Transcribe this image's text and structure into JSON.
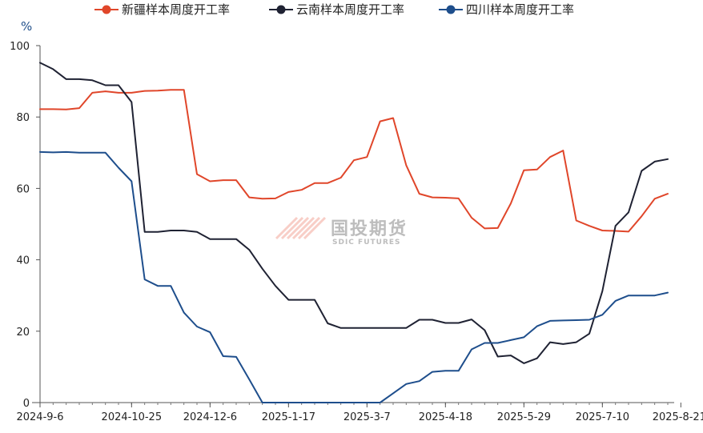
{
  "chart_data": {
    "type": "line",
    "unit": "%",
    "ylim": [
      0,
      100
    ],
    "yticks": [
      0,
      20,
      40,
      60,
      80,
      100
    ],
    "x_tick_labels": [
      "2024-9-6",
      "2024-10-25",
      "2024-12-6",
      "2025-1-17",
      "2025-3-7",
      "2025-4-18",
      "2025-5-29",
      "2025-7-10",
      "2025-8-21"
    ],
    "x_tick_index": [
      0,
      7,
      13,
      19,
      25,
      31,
      37,
      43,
      49
    ],
    "x_count": 49,
    "legend_position": "top",
    "grid": false,
    "series": [
      {
        "name": "新疆样本周度开工率",
        "color": "#e0462a",
        "values": [
          82.2,
          82.2,
          82.1,
          82.5,
          86.8,
          87.2,
          86.8,
          86.8,
          87.3,
          87.4,
          87.6,
          87.6,
          64.0,
          62.0,
          62.3,
          62.3,
          57.5,
          57.1,
          57.2,
          59.0,
          59.6,
          61.5,
          61.5,
          63.0,
          67.9,
          68.8,
          78.8,
          79.7,
          66.5,
          58.5,
          57.5,
          57.4,
          57.2,
          51.8,
          48.8,
          48.9,
          55.8,
          65.1,
          65.3,
          68.8,
          70.6,
          51.0,
          49.5,
          48.2,
          48.1,
          47.9,
          52.2,
          57.1,
          58.5
        ]
      },
      {
        "name": "云南样本周度开工率",
        "color": "#1f2233",
        "values": [
          95.2,
          93.4,
          90.6,
          90.6,
          90.3,
          88.9,
          88.9,
          84.2,
          47.8,
          47.8,
          48.2,
          48.2,
          47.8,
          45.8,
          45.8,
          45.8,
          42.8,
          37.5,
          32.7,
          28.8,
          28.8,
          28.8,
          22.2,
          20.9,
          20.9,
          20.9,
          20.9,
          20.9,
          20.9,
          23.2,
          23.2,
          22.3,
          22.3,
          23.3,
          20.3,
          12.9,
          13.2,
          11.0,
          12.4,
          16.9,
          16.4,
          16.9,
          19.3,
          31.2,
          49.5,
          53.3,
          64.9,
          67.5,
          68.2
        ]
      },
      {
        "name": "四川样本周度开工率",
        "color": "#1e4e8c",
        "values": [
          70.2,
          70.1,
          70.2,
          70.0,
          70.0,
          70.0,
          65.8,
          62.0,
          34.5,
          32.7,
          32.7,
          25.2,
          21.3,
          19.7,
          13.0,
          12.8,
          6.5,
          0.0,
          0.0,
          0.0,
          0.0,
          0.0,
          0.0,
          0.0,
          0.0,
          0.0,
          0.0,
          2.6,
          5.2,
          6.0,
          8.6,
          8.9,
          8.9,
          14.9,
          16.7,
          16.7,
          17.5,
          18.3,
          21.4,
          22.9,
          23.0,
          23.1,
          23.2,
          24.6,
          28.5,
          30.0,
          30.0,
          30.0,
          30.8
        ]
      }
    ]
  },
  "watermark": {
    "text_cn": "国投期货",
    "text_en": "SDIC FUTURES",
    "color": "#bdbdbd"
  }
}
